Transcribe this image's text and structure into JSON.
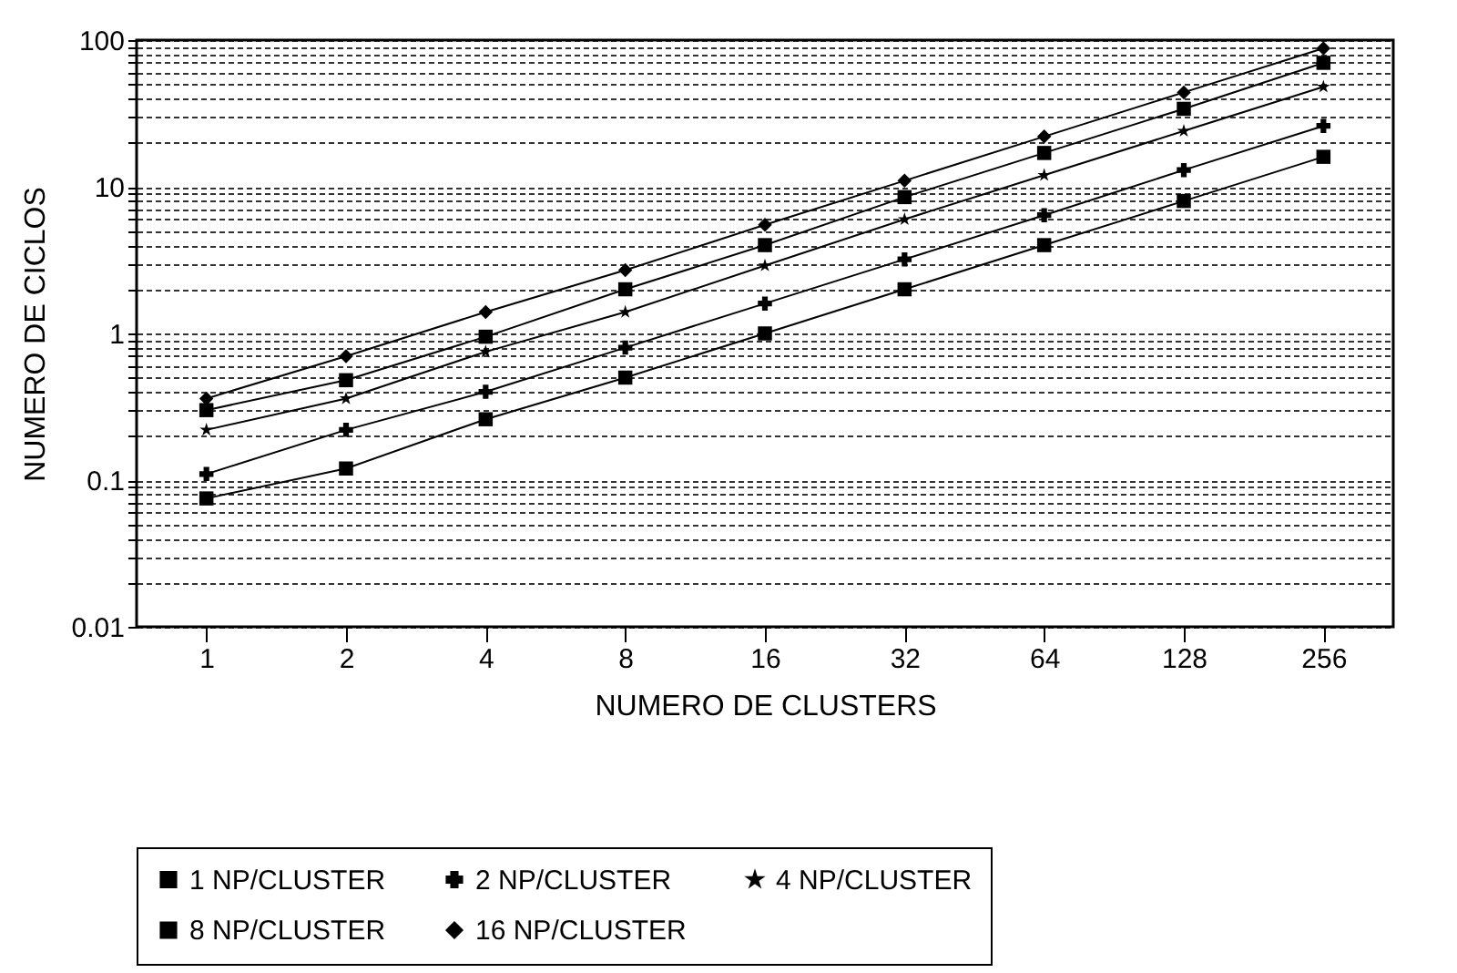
{
  "chart_data": {
    "type": "line",
    "xlabel": "NUMERO DE CLUSTERS",
    "ylabel": "NUMERO DE CICLOS",
    "categories": [
      "1",
      "2",
      "4",
      "8",
      "16",
      "32",
      "64",
      "128",
      "256"
    ],
    "series": [
      {
        "name": "1 NP/CLUSTER",
        "color": "#000000",
        "marker": "square",
        "values": [
          0.075,
          0.12,
          0.26,
          0.5,
          1,
          2,
          4,
          8,
          16
        ]
      },
      {
        "name": "2 NP/CLUSTER",
        "color": "#000000",
        "marker": "cross",
        "values": [
          0.11,
          0.22,
          0.4,
          0.8,
          1.6,
          3.2,
          6.4,
          13,
          26
        ]
      },
      {
        "name": "4 NP/CLUSTER",
        "color": "#000000",
        "marker": "star",
        "values": [
          0.22,
          0.36,
          0.75,
          1.4,
          2.9,
          6,
          12,
          24,
          48
        ]
      },
      {
        "name": "8 NP/CLUSTER",
        "color": "#000000",
        "marker": "square",
        "values": [
          0.3,
          0.48,
          0.95,
          2,
          4,
          8.5,
          17,
          34,
          70
        ]
      },
      {
        "name": "16 NP/CLUSTER",
        "color": "#000000",
        "marker": "diamond",
        "values": [
          0.36,
          0.7,
          1.4,
          2.7,
          5.5,
          11,
          22,
          44,
          88
        ]
      }
    ],
    "log": "y",
    "ylim": [
      0.01,
      100
    ],
    "yticks": [
      0.01,
      {
        "value": 0.02,
        "label": null
      },
      {
        "value": 0.03,
        "label": null
      },
      {
        "value": 0.04,
        "label": null
      },
      {
        "value": 0.05,
        "label": null
      },
      {
        "value": 0.06,
        "label": null
      },
      {
        "value": 0.07,
        "label": null
      },
      {
        "value": 0.08,
        "label": null
      },
      {
        "value": 0.09,
        "label": null
      },
      0.1,
      {
        "value": 0.2,
        "label": null
      },
      {
        "value": 0.3,
        "label": null
      },
      {
        "value": 0.4,
        "label": null
      },
      {
        "value": 0.5,
        "label": null
      },
      {
        "value": 0.6,
        "label": null
      },
      {
        "value": 0.7,
        "label": null
      },
      {
        "value": 0.8,
        "label": null
      },
      {
        "value": 0.9,
        "label": null
      },
      1,
      {
        "value": 2,
        "label": null
      },
      {
        "value": 3,
        "label": null
      },
      {
        "value": 4,
        "label": null
      },
      {
        "value": 5,
        "label": null
      },
      {
        "value": 6,
        "label": null
      },
      {
        "value": 7,
        "label": null
      },
      {
        "value": 8,
        "label": null
      },
      {
        "value": 9,
        "label": null
      },
      10,
      {
        "value": 20,
        "label": null
      },
      {
        "value": 30,
        "label": null
      },
      {
        "value": 40,
        "label": null
      },
      {
        "value": 50,
        "label": null
      },
      {
        "value": 60,
        "label": null
      },
      {
        "value": 70,
        "label": null
      },
      {
        "value": 80,
        "label": null
      },
      {
        "value": 90,
        "label": null
      },
      100
    ],
    "grid": "y",
    "legend": "bottom",
    "line_style": "solid"
  }
}
